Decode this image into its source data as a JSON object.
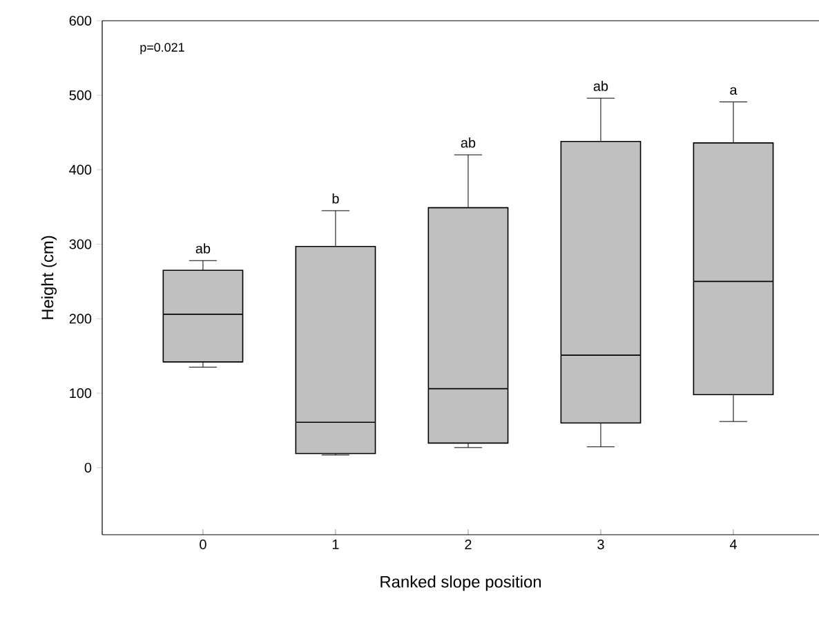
{
  "chart_data": {
    "type": "box",
    "xlabel": "Ranked slope position",
    "ylabel": "Height (cm)",
    "categories": [
      "0",
      "1",
      "2",
      "3",
      "4"
    ],
    "color": "#c0c0c0",
    "boxes": [
      {
        "low": 135,
        "q1": 142,
        "median": 206,
        "q3": 265,
        "high": 278
      },
      {
        "low": 17,
        "q1": 19,
        "median": 61,
        "q3": 297,
        "high": 345
      },
      {
        "low": 27,
        "q1": 33,
        "median": 106,
        "q3": 349,
        "high": 420
      },
      {
        "low": 28,
        "q1": 60,
        "median": 151,
        "q3": 438,
        "high": 496
      },
      {
        "low": 62,
        "q1": 98,
        "median": 250,
        "q3": 436,
        "high": 491
      }
    ],
    "ylim": [
      -90,
      600
    ],
    "yticks": [
      0,
      100,
      200,
      300,
      400,
      500,
      600
    ],
    "grid": false,
    "annotations": [
      "p=0.021",
      "ab",
      "b",
      "ab",
      "ab",
      "a"
    ]
  }
}
